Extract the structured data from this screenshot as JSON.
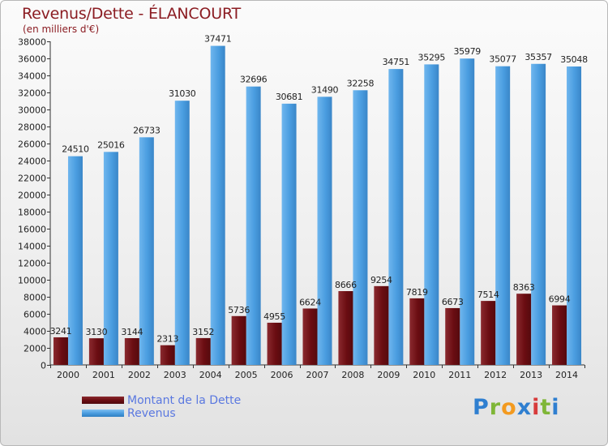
{
  "header": {
    "title": "Revenus/Dette - ÉLANCOURT",
    "subtitle": "(en milliers d'€)"
  },
  "legend": {
    "debt_label": "Montant de la Dette",
    "revenue_label": "Revenus"
  },
  "brand": {
    "letters": [
      "P",
      "r",
      "o",
      "x",
      "i",
      "t",
      "i"
    ],
    "colors": [
      "#2f7fd0",
      "#7fb637",
      "#f39a1f",
      "#2f7fd0",
      "#d73b3b",
      "#7fb637",
      "#2f7fd0"
    ]
  },
  "colors": {
    "debt": "#6b0d12",
    "debt_light": "#9a3a3e",
    "revenue": "#4a9de0",
    "revenue_light": "#78bdf0",
    "title": "#8b1c22"
  },
  "chart_data": {
    "type": "bar",
    "title": "Revenus/Dette - ÉLANCOURT",
    "ylabel": "(en milliers d'€)",
    "xlabel": "",
    "categories": [
      "2000",
      "2001",
      "2002",
      "2003",
      "2004",
      "2005",
      "2006",
      "2007",
      "2008",
      "2009",
      "2010",
      "2011",
      "2012",
      "2013",
      "2014"
    ],
    "ylim": [
      0,
      38000
    ],
    "ytick_step": 2000,
    "grid": false,
    "legend_position": "bottom-left",
    "series": [
      {
        "name": "Montant de la Dette",
        "values": [
          3241,
          3130,
          3144,
          2313,
          3152,
          5736,
          4955,
          6624,
          8666,
          9254,
          7819,
          6673,
          7514,
          8363,
          6994
        ],
        "labels": [
          "3241",
          "3130",
          "3144",
          "2313",
          "3152",
          "5736",
          "4955",
          "6624",
          "8666",
          "9254",
          "7819",
          "6673",
          "7514",
          "8363",
          "6994"
        ]
      },
      {
        "name": "Revenus",
        "values": [
          24510,
          25016,
          26733,
          31030,
          37471,
          32696,
          30681,
          31490,
          32258,
          34751,
          35295,
          35979,
          35077,
          35357,
          35048
        ],
        "labels": [
          "24510",
          "25016",
          "26733",
          "31030",
          "37471",
          "32696",
          "30681",
          "31490",
          "32258",
          "34751",
          "35295",
          "35979",
          "35077",
          "35357",
          "35048"
        ]
      }
    ]
  }
}
